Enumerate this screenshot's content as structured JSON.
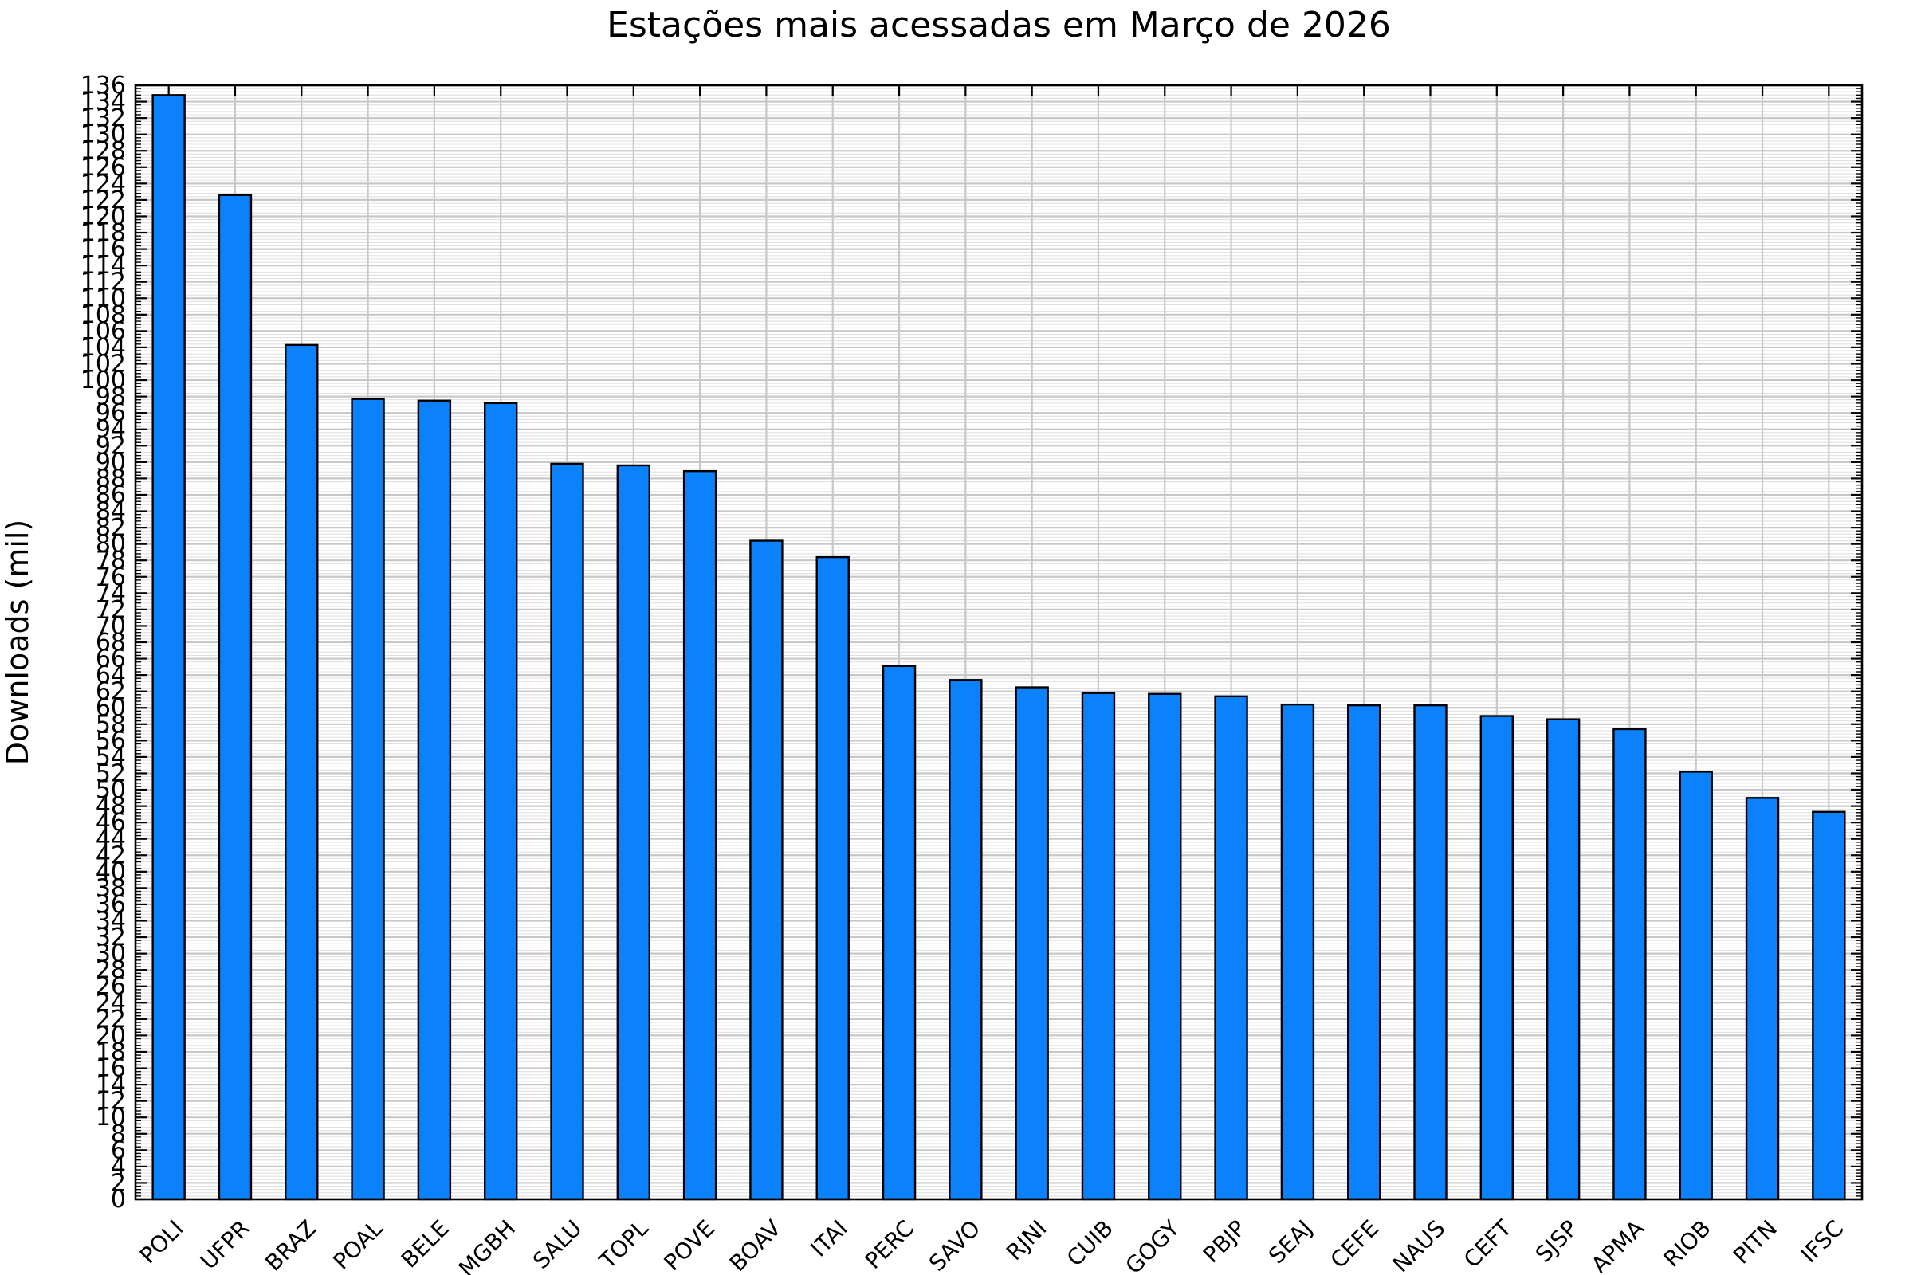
{
  "page": {
    "background": "#ffffff"
  },
  "chart_data": {
    "type": "bar",
    "title": "Estações mais acessadas em Março de 2026",
    "ylabel": "Downloads (mil)",
    "xlabel": "",
    "categories": [
      "POLI",
      "UFPR",
      "BRAZ",
      "POAL",
      "BELE",
      "MGBH",
      "SALU",
      "TOPL",
      "POVE",
      "BOAV",
      "ITAI",
      "PERC",
      "SAVO",
      "RJNI",
      "CUIB",
      "GOGY",
      "PBJP",
      "SEAJ",
      "CEFE",
      "NAUS",
      "CEFT",
      "SJSP",
      "APMA",
      "RIOB",
      "PITN",
      "IFSC"
    ],
    "values": [
      134.8,
      122.6,
      104.3,
      97.7,
      97.5,
      97.2,
      89.8,
      89.6,
      88.9,
      80.4,
      78.4,
      65.1,
      63.4,
      62.5,
      61.8,
      61.7,
      61.4,
      60.4,
      60.3,
      60.3,
      59.0,
      58.6,
      57.4,
      52.2,
      49.0,
      47.3
    ],
    "ylim": [
      0,
      136
    ],
    "y_major_step": 2,
    "y_minor_step": 0.4,
    "y_tick_labels": [
      "0",
      "2",
      "4",
      "6",
      "8",
      "10",
      "12",
      "14",
      "16",
      "18",
      "20",
      "22",
      "24",
      "26",
      "28",
      "30",
      "32",
      "34",
      "36",
      "38",
      "40",
      "42",
      "44",
      "46",
      "48",
      "50",
      "52",
      "54",
      "56",
      "58",
      "60",
      "62",
      "64",
      "66",
      "68",
      "70",
      "72",
      "74",
      "76",
      "78",
      "80",
      "82",
      "84",
      "86",
      "88",
      "90",
      "92",
      "94",
      "96",
      "98",
      "100",
      "102",
      "104",
      "106",
      "108",
      "110",
      "112",
      "114",
      "116",
      "118",
      "120",
      "122",
      "124",
      "126",
      "128",
      "130",
      "132",
      "134",
      "136"
    ],
    "x_tick_rotation_deg": 45,
    "legend": "none",
    "grid": {
      "horizontal_major": true,
      "horizontal_minor": true,
      "vertical_major": true
    },
    "colors": {
      "bar_fill": "#0b82fc",
      "bar_edge": "#000000",
      "grid_major": "#c8c8c8",
      "grid_minor": "#e0e0e0",
      "spine": "#000000",
      "text": "#000000",
      "background": "#ffffff"
    }
  }
}
